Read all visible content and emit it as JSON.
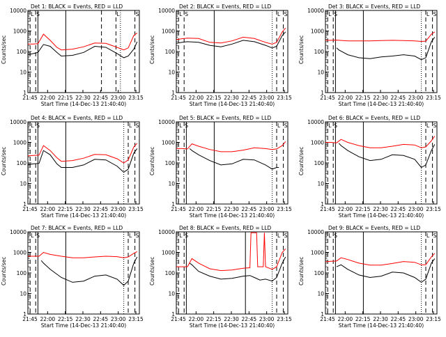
{
  "chart_data": [
    {
      "type": "line",
      "title": "Det 1: BLACK = Events, RED = LLD",
      "xlabel": "Start Time (14-Dec-13 21:40:40)",
      "ylabel": "Counts/sec",
      "xticks": [
        "21:45",
        "22:00",
        "22:15",
        "22:30",
        "22:45",
        "23:00",
        "23:15"
      ],
      "yticks": [
        "1",
        "10",
        "100",
        "1000",
        "10000"
      ],
      "yscale": "log",
      "ylim": [
        1,
        10000
      ],
      "xlim_min": [
        0,
        100
      ],
      "series": [
        {
          "name": "BLACK = Events",
          "color": "#000000",
          "x": [
            0,
            5,
            9,
            14,
            20,
            26,
            30,
            40,
            50,
            60,
            70,
            80,
            86,
            90,
            95,
            98
          ],
          "y": [
            70,
            80,
            90,
            220,
            180,
            90,
            60,
            65,
            90,
            180,
            160,
            80,
            50,
            60,
            130,
            300
          ]
        },
        {
          "name": "RED = LLD",
          "color": "#ff0000",
          "x": [
            0,
            5,
            9,
            14,
            20,
            26,
            30,
            40,
            50,
            60,
            70,
            80,
            86,
            90,
            95,
            98
          ],
          "y": [
            230,
            230,
            240,
            700,
            350,
            160,
            120,
            130,
            170,
            260,
            250,
            160,
            120,
            150,
            600,
            800
          ]
        }
      ],
      "markers": {
        "dashed": [
          2,
          7,
          66,
          79,
          96
        ],
        "solid": [
          9,
          34
        ],
        "dotted": [
          83
        ],
        "letters": [
          "L",
          "S",
          "L",
          "S"
        ]
      }
    },
    {
      "type": "line",
      "title": "Det 2: BLACK = Events, RED = LLD",
      "xlabel": "Start Time (14-Dec-13 21:40:40)",
      "ylabel": "Counts/sec",
      "xticks": [
        "21:45",
        "22:00",
        "22:15",
        "22:30",
        "22:45",
        "23:00",
        "23:15"
      ],
      "yticks": [
        "1",
        "10",
        "100",
        "1000",
        "10000"
      ],
      "yscale": "log",
      "ylim": [
        1,
        10000
      ],
      "series": [
        {
          "name": "BLACK = Events",
          "color": "#000000",
          "x": [
            0,
            5,
            10,
            20,
            30,
            40,
            50,
            60,
            70,
            80,
            86,
            90,
            95,
            98
          ],
          "y": [
            250,
            280,
            300,
            280,
            200,
            170,
            230,
            350,
            300,
            200,
            150,
            180,
            600,
            900
          ]
        },
        {
          "name": "RED = LLD",
          "color": "#ff0000",
          "x": [
            0,
            5,
            10,
            20,
            30,
            40,
            50,
            60,
            70,
            80,
            86,
            90,
            95,
            98
          ],
          "y": [
            380,
            420,
            450,
            430,
            280,
            260,
            330,
            500,
            430,
            280,
            230,
            280,
            900,
            1400
          ]
        }
      ],
      "markers": {
        "dashed": [
          2,
          7,
          90,
          96
        ],
        "solid": [
          34
        ],
        "dotted": [
          86
        ],
        "letters": [
          "L",
          "S",
          "L",
          "S"
        ]
      }
    },
    {
      "type": "line",
      "title": "Det 3: BLACK = Events, RED = LLD",
      "xlabel": "Start Time (14-Dec-13 21:40:40)",
      "ylabel": "Counts/sec",
      "xticks": [
        "21:45",
        "22:00",
        "22:15",
        "22:30",
        "22:45",
        "23:00",
        "23:15"
      ],
      "yticks": [
        "1",
        "10",
        "100",
        "1000",
        "10000"
      ],
      "yscale": "log",
      "ylim": [
        1,
        10000
      ],
      "series": [
        {
          "name": "BLACK = Events",
          "color": "#000000",
          "x": [
            10,
            12,
            20,
            30,
            40,
            50,
            60,
            70,
            80,
            86,
            90,
            95,
            98
          ],
          "y": [
            150,
            120,
            70,
            50,
            45,
            55,
            60,
            70,
            60,
            40,
            50,
            300,
            500
          ]
        },
        {
          "name": "RED = LLD",
          "color": "#ff0000",
          "x": [
            0,
            5,
            10,
            20,
            30,
            40,
            50,
            60,
            70,
            80,
            86,
            90,
            95,
            98
          ],
          "y": [
            350,
            350,
            360,
            330,
            330,
            330,
            340,
            350,
            340,
            330,
            310,
            320,
            700,
            900
          ]
        }
      ],
      "markers": {
        "dashed": [
          2,
          7,
          90,
          96
        ],
        "solid": [
          9,
          34
        ],
        "dotted": [
          86
        ],
        "letters": [
          "L",
          "S",
          "L",
          "S"
        ]
      }
    },
    {
      "type": "line",
      "title": "Det 4: BLACK = Events, RED = LLD",
      "xlabel": "Start Time (14-Dec-13 21:40:40)",
      "ylabel": "Counts/sec",
      "xticks": [
        "21:45",
        "22:00",
        "22:15",
        "22:30",
        "22:45",
        "23:00",
        "23:15"
      ],
      "yticks": [
        "1",
        "10",
        "100",
        "1000",
        "10000"
      ],
      "yscale": "log",
      "ylim": [
        1,
        10000
      ],
      "series": [
        {
          "name": "BLACK = Events",
          "color": "#000000",
          "x": [
            0,
            5,
            10,
            14,
            20,
            26,
            30,
            40,
            50,
            60,
            70,
            80,
            86,
            90,
            95,
            98
          ],
          "y": [
            80,
            90,
            95,
            400,
            250,
            90,
            60,
            60,
            80,
            150,
            140,
            70,
            35,
            50,
            300,
            500
          ]
        },
        {
          "name": "RED = LLD",
          "color": "#ff0000",
          "x": [
            0,
            5,
            10,
            14,
            20,
            26,
            30,
            40,
            50,
            60,
            70,
            80,
            86,
            90,
            95,
            98
          ],
          "y": [
            220,
            230,
            240,
            700,
            400,
            180,
            120,
            130,
            170,
            260,
            250,
            160,
            100,
            140,
            600,
            900
          ]
        }
      ],
      "markers": {
        "dashed": [
          2,
          7,
          90,
          96
        ],
        "solid": [
          9,
          34
        ],
        "dotted": [
          86
        ],
        "letters": [
          "L",
          "S",
          "L",
          "S"
        ]
      }
    },
    {
      "type": "line",
      "title": "Det 5: BLACK = Events, RED = LLD",
      "xlabel": "Start Time (14-Dec-13 21:40:40)",
      "ylabel": "Counts/sec",
      "xticks": [
        "21:45",
        "22:00",
        "22:15",
        "22:30",
        "22:45",
        "23:00",
        "23:15"
      ],
      "yticks": [
        "1",
        "10",
        "100",
        "1000",
        "10000"
      ],
      "yscale": "log",
      "ylim": [
        1,
        10000
      ],
      "series": [
        {
          "name": "BLACK = Events",
          "color": "#000000",
          "x": [
            12,
            14,
            20,
            30,
            40,
            50,
            60,
            70,
            80,
            86,
            90,
            92
          ],
          "y": [
            500,
            400,
            250,
            130,
            80,
            90,
            150,
            140,
            80,
            50,
            60,
            60
          ]
        },
        {
          "name": "RED = LLD",
          "color": "#ff0000",
          "x": [
            0,
            5,
            10,
            14,
            20,
            30,
            40,
            50,
            60,
            70,
            80,
            86,
            90,
            95,
            98
          ],
          "y": [
            500,
            500,
            480,
            850,
            650,
            450,
            350,
            350,
            420,
            550,
            500,
            450,
            480,
            700,
            1100
          ]
        }
      ],
      "markers": {
        "dashed": [
          2,
          7,
          90,
          96
        ],
        "solid": [
          9,
          34
        ],
        "dotted": [
          86
        ],
        "letters": [
          "L",
          "S",
          "L",
          "S"
        ]
      }
    },
    {
      "type": "line",
      "title": "Det 6: BLACK = Events, RED = LLD",
      "xlabel": "Start Time (14-Dec-13 21:40:40)",
      "ylabel": "Counts/sec",
      "xticks": [
        "21:45",
        "22:00",
        "22:15",
        "22:30",
        "22:45",
        "23:00",
        "23:15"
      ],
      "yticks": [
        "1",
        "10",
        "100",
        "1000",
        "10000"
      ],
      "yscale": "log",
      "ylim": [
        1,
        10000
      ],
      "series": [
        {
          "name": "BLACK = Events",
          "color": "#000000",
          "x": [
            12,
            14,
            20,
            30,
            40,
            50,
            60,
            70,
            80,
            86,
            90,
            95,
            98
          ],
          "y": [
            900,
            700,
            400,
            200,
            130,
            150,
            250,
            230,
            150,
            60,
            80,
            400,
            800
          ]
        },
        {
          "name": "RED = LLD",
          "color": "#ff0000",
          "x": [
            0,
            5,
            10,
            14,
            20,
            30,
            40,
            50,
            60,
            70,
            80,
            86,
            90,
            95,
            98
          ],
          "y": [
            1000,
            1000,
            950,
            1400,
            1000,
            700,
            550,
            550,
            650,
            800,
            750,
            550,
            600,
            1200,
            2000
          ]
        }
      ],
      "markers": {
        "dashed": [
          2,
          7,
          90,
          96
        ],
        "solid": [
          9,
          34
        ],
        "dotted": [
          86
        ],
        "letters": [
          "L",
          "S",
          "L",
          "S"
        ]
      }
    },
    {
      "type": "line",
      "title": "Det 7: BLACK = Events, RED = LLD",
      "xlabel": "Start Time (14-Dec-13 21:40:40)",
      "ylabel": "Counts/sec",
      "xticks": [
        "21:45",
        "22:00",
        "22:15",
        "22:30",
        "22:45",
        "23:00",
        "23:15"
      ],
      "yticks": [
        "1",
        "10",
        "100",
        "1000",
        "10000"
      ],
      "yscale": "log",
      "ylim": [
        1,
        10000
      ],
      "series": [
        {
          "name": "BLACK = Events",
          "color": "#000000",
          "x": [
            12,
            14,
            20,
            30,
            40,
            50,
            60,
            70,
            80,
            86,
            90,
            95,
            98
          ],
          "y": [
            400,
            300,
            150,
            60,
            35,
            40,
            70,
            80,
            50,
            25,
            40,
            300,
            600
          ]
        },
        {
          "name": "RED = LLD",
          "color": "#ff0000",
          "x": [
            0,
            5,
            10,
            14,
            20,
            30,
            40,
            50,
            60,
            70,
            80,
            86,
            90,
            95,
            98
          ],
          "y": [
            650,
            650,
            650,
            1000,
            800,
            650,
            550,
            550,
            600,
            650,
            620,
            550,
            600,
            900,
            1100
          ]
        }
      ],
      "markers": {
        "dashed": [
          2,
          7,
          90,
          96
        ],
        "solid": [
          9,
          34
        ],
        "dotted": [
          86
        ],
        "letters": [
          "L",
          "S",
          "L",
          "S"
        ]
      }
    },
    {
      "type": "line",
      "title": "Det 8: BLACK = Events, RED = LLD",
      "xlabel": "Start Time (14-Dec-13 21:40:40)",
      "ylabel": "Counts/sec",
      "xticks": [
        "21:45",
        "22:00",
        "22:15",
        "22:30",
        "22:45",
        "23:00",
        "23:15"
      ],
      "yticks": [
        "1",
        "10",
        "100",
        "1000",
        "10000"
      ],
      "yscale": "log",
      "ylim": [
        1,
        10000
      ],
      "series": [
        {
          "name": "BLACK = Events",
          "color": "#000000",
          "x": [
            12,
            14,
            20,
            30,
            40,
            50,
            60,
            66,
            70,
            75,
            80,
            86,
            90,
            95,
            98
          ],
          "y": [
            300,
            250,
            120,
            70,
            50,
            55,
            70,
            75,
            60,
            45,
            50,
            40,
            60,
            300,
            600
          ]
        },
        {
          "name": "RED = LLD",
          "color": "#ff0000",
          "x": [
            0,
            5,
            10,
            14,
            20,
            30,
            40,
            50,
            60,
            66,
            67,
            70,
            72,
            73,
            78,
            79,
            80,
            86,
            90,
            95,
            98
          ],
          "y": [
            200,
            200,
            200,
            500,
            300,
            160,
            130,
            140,
            170,
            180,
            9000,
            9000,
            9000,
            200,
            200,
            9000,
            200,
            150,
            200,
            1000,
            1500
          ]
        }
      ],
      "markers": {
        "dashed": [
          2,
          7,
          90,
          96
        ],
        "solid": [
          9,
          62
        ],
        "dotted": [
          86
        ],
        "letters": [
          "L",
          "S",
          "L",
          "S"
        ]
      }
    },
    {
      "type": "line",
      "title": "Det 9: BLACK = Events, RED = LLD",
      "xlabel": "Start Time (14-Dec-13 21:40:40)",
      "ylabel": "Counts/sec",
      "xticks": [
        "21:45",
        "22:00",
        "22:15",
        "22:30",
        "22:45",
        "23:00",
        "23:15"
      ],
      "yticks": [
        "1",
        "10",
        "100",
        "1000",
        "10000"
      ],
      "yscale": "log",
      "ylim": [
        1,
        10000
      ],
      "series": [
        {
          "name": "BLACK = Events",
          "color": "#000000",
          "x": [
            10,
            14,
            20,
            30,
            40,
            50,
            60,
            70,
            80,
            86,
            90,
            95,
            98
          ],
          "y": [
            200,
            250,
            150,
            80,
            60,
            70,
            110,
            100,
            60,
            35,
            50,
            300,
            500
          ]
        },
        {
          "name": "RED = LLD",
          "color": "#ff0000",
          "x": [
            0,
            5,
            10,
            14,
            20,
            30,
            40,
            50,
            60,
            70,
            80,
            86,
            90,
            95,
            98
          ],
          "y": [
            350,
            370,
            380,
            550,
            450,
            300,
            240,
            240,
            290,
            360,
            330,
            250,
            250,
            600,
            900
          ]
        }
      ],
      "markers": {
        "dashed": [
          2,
          7,
          90,
          96
        ],
        "solid": [
          9,
          34
        ],
        "dotted": [
          86
        ],
        "letters": [
          "L",
          "S",
          "L",
          "S"
        ]
      }
    }
  ]
}
